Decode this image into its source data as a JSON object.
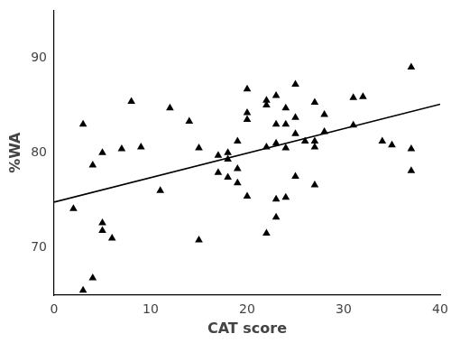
{
  "chart_data": {
    "type": "scatter",
    "x_label": "CAT score",
    "y_label": "%WA",
    "marker": "triangle",
    "color": "#000000",
    "grid": false,
    "x": [
      2,
      3,
      3,
      4,
      4,
      5,
      5,
      5,
      6,
      7,
      8,
      9,
      11,
      12,
      14,
      15,
      15,
      17,
      17,
      18,
      18,
      18,
      19,
      19,
      19,
      20,
      20,
      20,
      20,
      22,
      22,
      22,
      22,
      23,
      23,
      23,
      23,
      23,
      24,
      24,
      24,
      24,
      25,
      25,
      25,
      25,
      26,
      27,
      27,
      27,
      27,
      28,
      28,
      31,
      31,
      32,
      34,
      35,
      37,
      37,
      37
    ],
    "values": [
      74.1,
      83,
      65.5,
      66.8,
      78.7,
      80,
      72.6,
      71.8,
      71,
      80.4,
      85.4,
      80.6,
      76,
      84.7,
      83.3,
      80.5,
      70.8,
      79.7,
      77.9,
      80,
      79.3,
      77.4,
      76.8,
      78.3,
      81.2,
      86.7,
      84.2,
      83.5,
      75.4,
      85,
      85.5,
      80.6,
      71.5,
      86,
      83,
      81,
      75.1,
      73.2,
      84.7,
      83,
      80.5,
      75.3,
      87.2,
      83.7,
      82,
      77.5,
      81.2,
      85.3,
      81.2,
      80.6,
      76.6,
      84,
      82.2,
      85.8,
      82.9,
      85.9,
      81.2,
      80.8,
      89,
      80.4,
      78.1
    ],
    "fit_line": {
      "x": [
        0,
        40
      ],
      "values": [
        74.8,
        85.1
      ],
      "color": "#000000",
      "line_style": "solid"
    },
    "xlim": [
      0,
      40
    ],
    "xticks": [
      0,
      10,
      20,
      30,
      40
    ],
    "ylim": [
      65,
      95
    ],
    "yticks": [
      70,
      80,
      90
    ]
  }
}
